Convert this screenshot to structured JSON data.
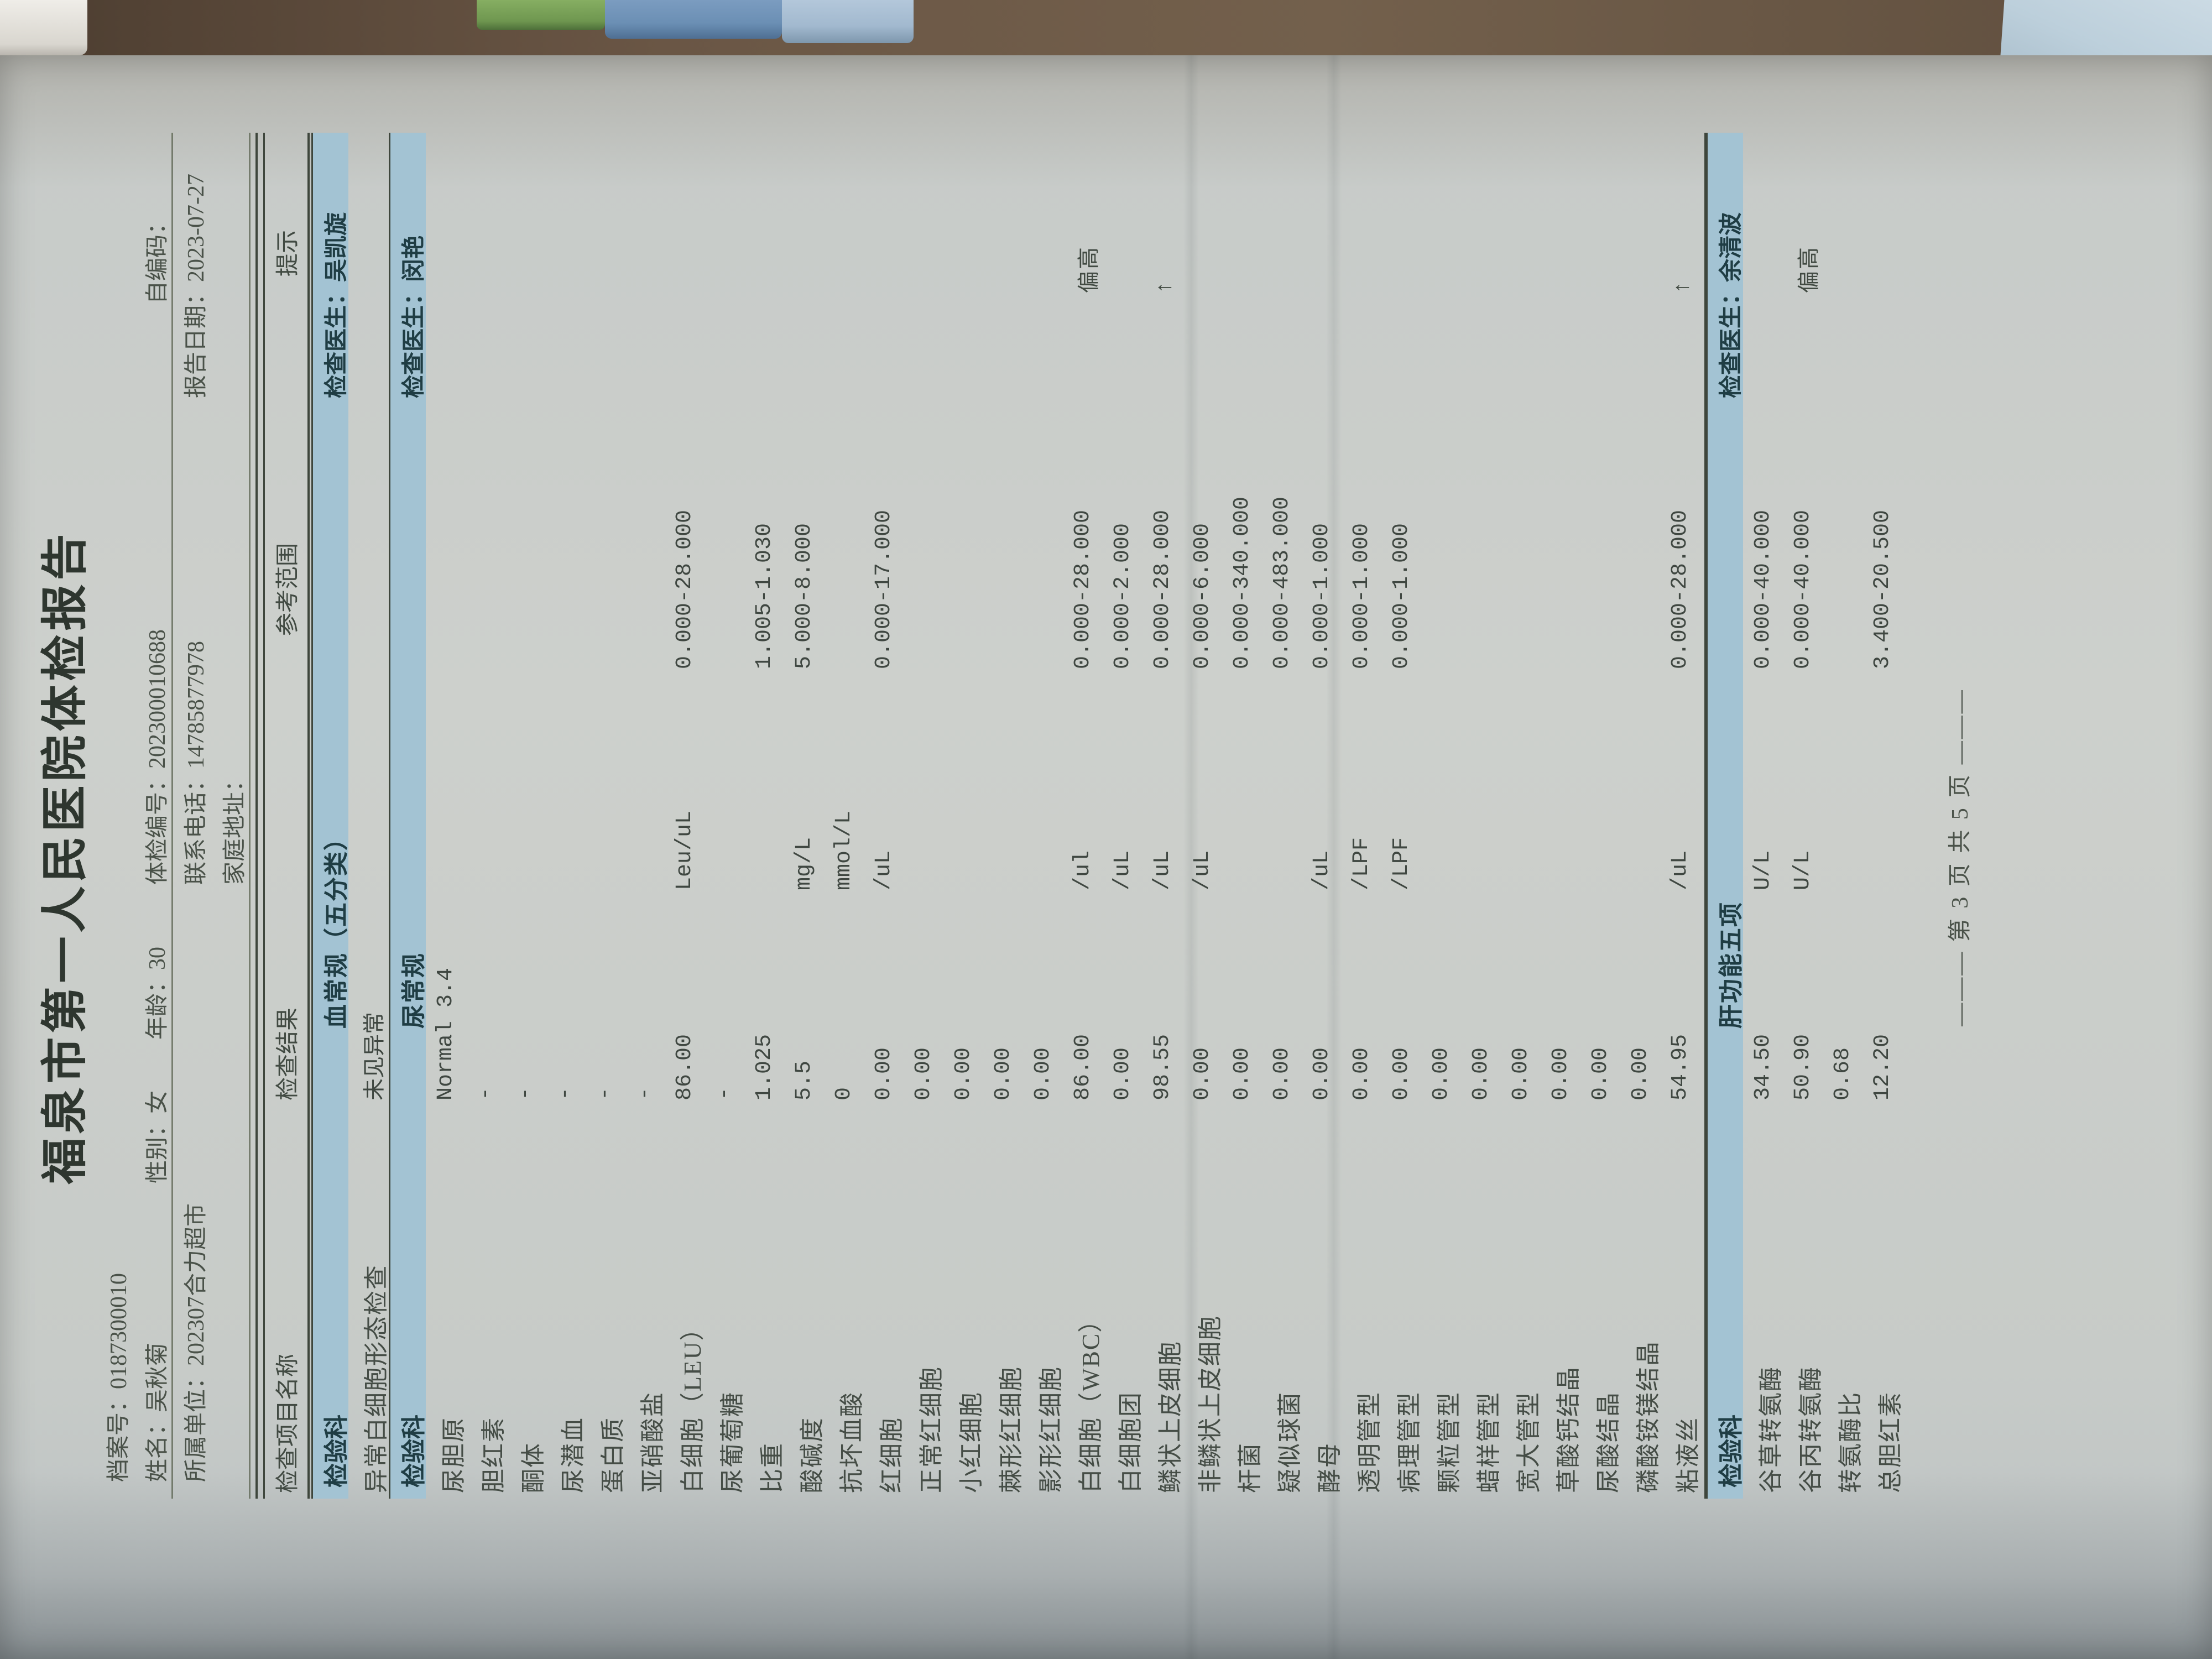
{
  "doc": {
    "title": "福泉市第一人民医院体检报告",
    "header": {
      "file_no": "档案号：0187300010",
      "name": "姓名：吴秋菊",
      "gender": "性别：女",
      "age": "年龄：30",
      "exam_no": "体检编号：202300010688",
      "self_code": "自编码：",
      "unit": "所属单位：202307合力超市",
      "phone": "联系电话：14785877978",
      "report_date": "报告日期：2023-07-27",
      "address": "家庭地址："
    }
  },
  "table": {
    "columns": [
      "检查项目名称",
      "检查结果",
      "参考范围",
      "提示"
    ],
    "sections": [
      {
        "dept": "检验科",
        "name": "血常规（五分类）",
        "doctor": "检查医生：吴凯旋",
        "rows": [
          {
            "name": "异常白细胞形态检查",
            "result": "未见异常",
            "unit": "",
            "ref": "",
            "hint": ""
          }
        ]
      },
      {
        "dept": "检验科",
        "name": "尿常规",
        "doctor": "检查医生：闵艳",
        "rows": [
          {
            "name": "尿胆原",
            "result": "Normal 3.4",
            "unit": "",
            "ref": "",
            "hint": ""
          },
          {
            "name": "胆红素",
            "result": "-",
            "unit": "",
            "ref": "",
            "hint": ""
          },
          {
            "name": "酮体",
            "result": "-",
            "unit": "",
            "ref": "",
            "hint": ""
          },
          {
            "name": "尿潜血",
            "result": "-",
            "unit": "",
            "ref": "",
            "hint": ""
          },
          {
            "name": "蛋白质",
            "result": "-",
            "unit": "",
            "ref": "",
            "hint": ""
          },
          {
            "name": "亚硝酸盐",
            "result": "-",
            "unit": "",
            "ref": "",
            "hint": ""
          },
          {
            "name": "白细胞（LEU）",
            "result": "86.00",
            "unit": "Leu/uL",
            "ref": "0.000-28.000",
            "hint": ""
          },
          {
            "name": "尿葡萄糖",
            "result": "-",
            "unit": "",
            "ref": "",
            "hint": ""
          },
          {
            "name": "比重",
            "result": "1.025",
            "unit": "",
            "ref": "1.005-1.030",
            "hint": ""
          },
          {
            "name": "酸碱度",
            "result": "5.5",
            "unit": "mg/L",
            "ref": "5.000-8.000",
            "hint": ""
          },
          {
            "name": "抗坏血酸",
            "result": "0",
            "unit": "mmol/L",
            "ref": "",
            "hint": ""
          },
          {
            "name": "红细胞",
            "result": "0.00",
            "unit": "/uL",
            "ref": "0.000-17.000",
            "hint": ""
          },
          {
            "name": "正常红细胞",
            "result": "0.00",
            "unit": "",
            "ref": "",
            "hint": ""
          },
          {
            "name": "小红细胞",
            "result": "0.00",
            "unit": "",
            "ref": "",
            "hint": ""
          },
          {
            "name": "棘形红细胞",
            "result": "0.00",
            "unit": "",
            "ref": "",
            "hint": ""
          },
          {
            "name": "影形红细胞",
            "result": "0.00",
            "unit": "",
            "ref": "",
            "hint": ""
          },
          {
            "name": "白细胞（WBC）",
            "result": "86.00",
            "unit": "/ul",
            "ref": "0.000-28.000",
            "hint": "偏高"
          },
          {
            "name": "白细胞团",
            "result": "0.00",
            "unit": "/uL",
            "ref": "0.000-2.000",
            "hint": ""
          },
          {
            "name": "鳞状上皮细胞",
            "result": "98.55",
            "unit": "/uL",
            "ref": "0.000-28.000",
            "hint": "↑"
          },
          {
            "name": "非鳞状上皮细胞",
            "result": "0.00",
            "unit": "/uL",
            "ref": "0.000-6.000",
            "hint": ""
          },
          {
            "name": "杆菌",
            "result": "0.00",
            "unit": "",
            "ref": "0.000-340.000",
            "hint": ""
          },
          {
            "name": "疑似球菌",
            "result": "0.00",
            "unit": "",
            "ref": "0.000-483.000",
            "hint": ""
          },
          {
            "name": "酵母",
            "result": "0.00",
            "unit": "/uL",
            "ref": "0.000-1.000",
            "hint": ""
          },
          {
            "name": "透明管型",
            "result": "0.00",
            "unit": "/LPF",
            "ref": "0.000-1.000",
            "hint": ""
          },
          {
            "name": "病理管型",
            "result": "0.00",
            "unit": "/LPF",
            "ref": "0.000-1.000",
            "hint": ""
          },
          {
            "name": "颗粒管型",
            "result": "0.00",
            "unit": "",
            "ref": "",
            "hint": ""
          },
          {
            "name": "蜡样管型",
            "result": "0.00",
            "unit": "",
            "ref": "",
            "hint": ""
          },
          {
            "name": "宽大管型",
            "result": "0.00",
            "unit": "",
            "ref": "",
            "hint": ""
          },
          {
            "name": "草酸钙结晶",
            "result": "0.00",
            "unit": "",
            "ref": "",
            "hint": ""
          },
          {
            "name": "尿酸结晶",
            "result": "0.00",
            "unit": "",
            "ref": "",
            "hint": ""
          },
          {
            "name": "磷酸铵镁结晶",
            "result": "0.00",
            "unit": "",
            "ref": "",
            "hint": ""
          },
          {
            "name": "粘液丝",
            "result": "54.95",
            "unit": "/uL",
            "ref": "0.000-28.000",
            "hint": "↑"
          }
        ]
      },
      {
        "dept": "检验科",
        "name": "肝功能五项",
        "doctor": "检查医生：余清波",
        "rows": [
          {
            "name": "谷草转氨酶",
            "result": "34.50",
            "unit": "U/L",
            "ref": "0.000-40.000",
            "hint": ""
          },
          {
            "name": "谷丙转氨酶",
            "result": "50.90",
            "unit": "U/L",
            "ref": "0.000-40.000",
            "hint": "偏高"
          },
          {
            "name": "转氨酶比",
            "result": "0.68",
            "unit": "",
            "ref": "",
            "hint": ""
          },
          {
            "name": "总胆红素",
            "result": "12.20",
            "unit": "",
            "ref": "3.400-20.500",
            "hint": ""
          }
        ]
      }
    ]
  },
  "footer": {
    "text": "———  第 3 页  共 5 页  ———"
  },
  "colors": {
    "section_bar": "#a3c3d3",
    "paper": "#cdd0cc",
    "ink": "#454d46",
    "border": "#3e463c"
  }
}
